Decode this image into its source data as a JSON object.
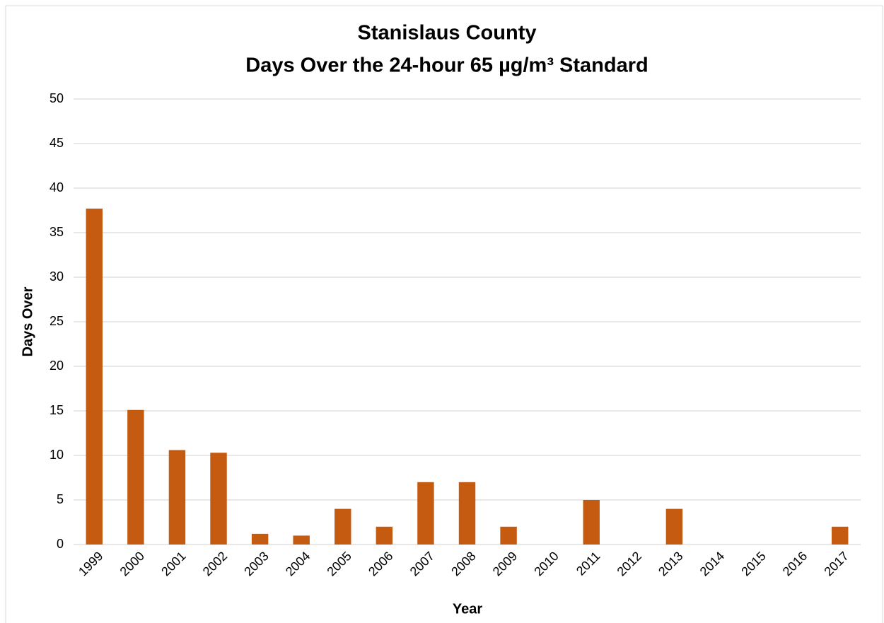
{
  "chart_data": {
    "type": "bar",
    "title": [
      "Stanislaus County",
      "Days Over the 24-hour 65 µg/m³ Standard"
    ],
    "x_label": "Year",
    "y_label": "Days Over",
    "categories": [
      "1999",
      "2000",
      "2001",
      "2002",
      "2003",
      "2004",
      "2005",
      "2006",
      "2007",
      "2008",
      "2009",
      "2010",
      "2011",
      "2012",
      "2013",
      "2014",
      "2015",
      "2016",
      "2017"
    ],
    "values": [
      37.7,
      15.1,
      10.6,
      10.3,
      1.2,
      1.0,
      4,
      2,
      7,
      7,
      2,
      0,
      5,
      0,
      4,
      0,
      0,
      0,
      2
    ],
    "color": "#c55a11",
    "ylim": [
      0,
      50
    ],
    "yticks": [
      0,
      5,
      10,
      15,
      20,
      25,
      30,
      35,
      40,
      45,
      50
    ],
    "grid": true
  }
}
